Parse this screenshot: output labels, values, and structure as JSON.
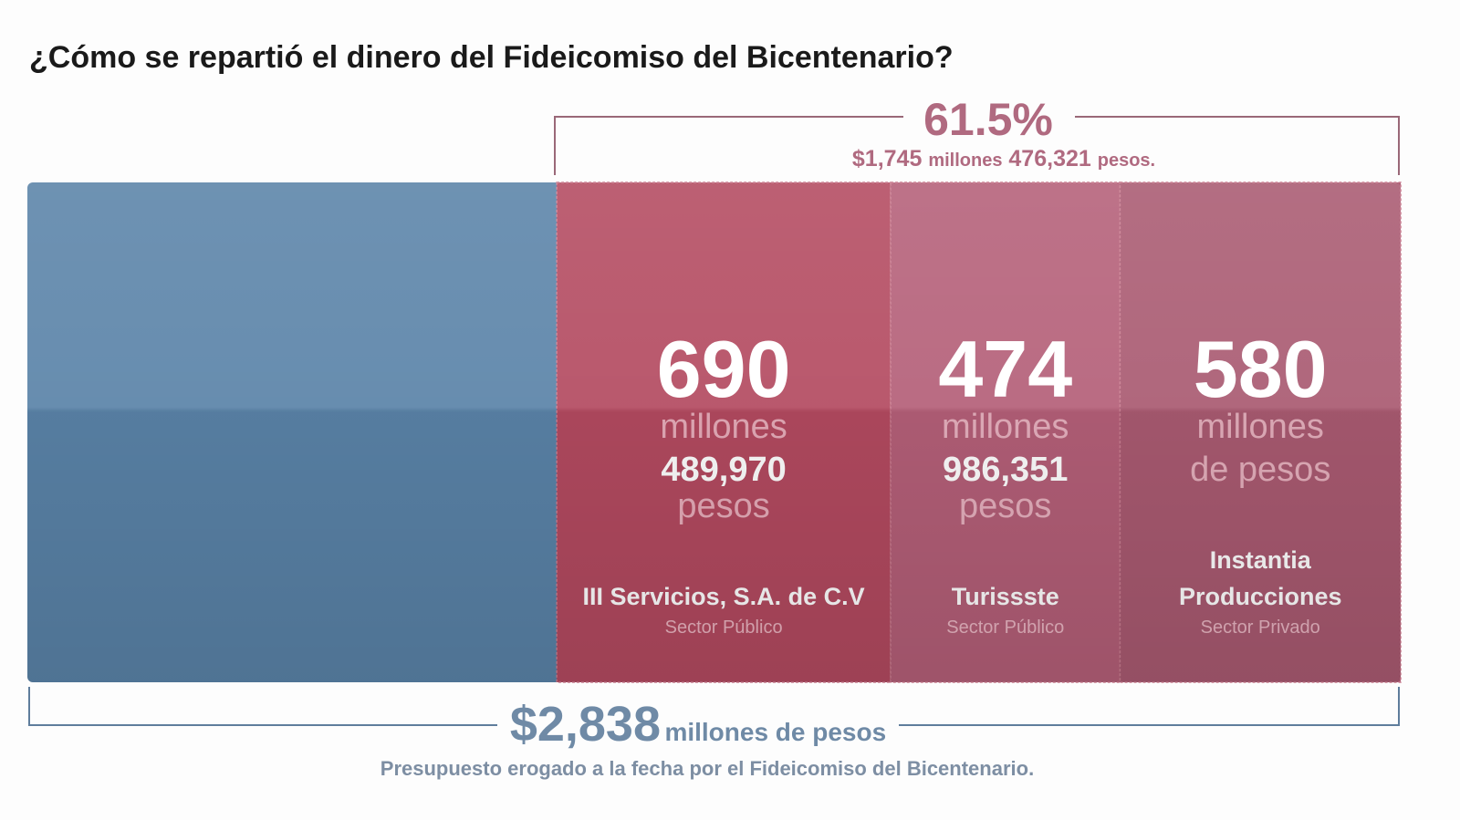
{
  "title": "¿Cómo se repartió el dinero del Fideicomiso del Bicentenario?",
  "share": {
    "percent": "61.5%",
    "amount": "$1,745",
    "amount_unit": "millones",
    "amount_rest": "476,321",
    "amount_rest_unit": "pesos."
  },
  "segments": [
    {
      "value": 690,
      "unit": "millones",
      "detail": "489,970",
      "detail_unit": "pesos",
      "name_lines": [
        "III Servicios, S.A. de C.V"
      ],
      "sector": "Sector Público",
      "color": "#b34a60"
    },
    {
      "value": 474,
      "unit": "millones",
      "detail": "986,351",
      "detail_unit": "pesos",
      "name_lines": [
        "Turissste"
      ],
      "sector": "Sector Público",
      "color": "#b45f78"
    },
    {
      "value": 580,
      "unit": "millones",
      "detail_unit": "de pesos",
      "name_lines": [
        "Instantia",
        "Producciones"
      ],
      "sector": "Sector Privado",
      "color": "#a95a71"
    }
  ],
  "total": {
    "value": 2838,
    "label": "$2,838",
    "unit": "millones de pesos",
    "caption": "Presupuesto erogado a la fecha por el Fideicomiso del Bicentenario.",
    "color": "#5a83a8"
  }
}
